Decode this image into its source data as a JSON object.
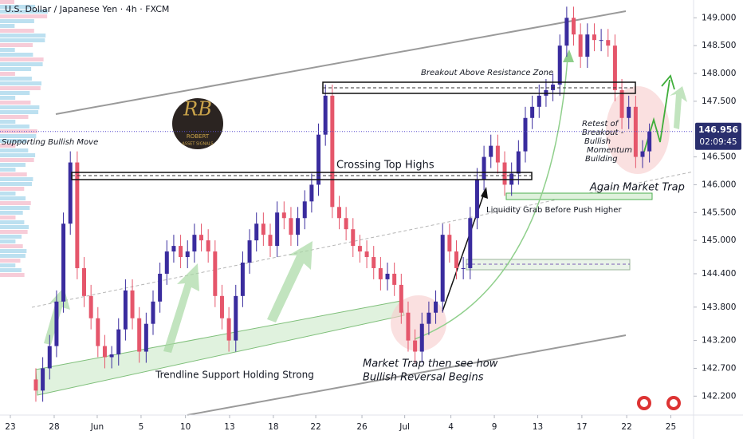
{
  "chart_data": {
    "type": "candlestick",
    "title": "U.S. Dollar / Japanese Yen · 4h · FXCM",
    "open": [
      142.5,
      142.3,
      142.7,
      143.1,
      143.9,
      145.3,
      146.4,
      144.5,
      144.0,
      143.6,
      143.1,
      142.9,
      142.95,
      143.4,
      144.1,
      143.6,
      143.0,
      143.5,
      143.9,
      144.4,
      144.8,
      144.9,
      144.7,
      144.8,
      145.1,
      145.0,
      144.8,
      144.0,
      143.6,
      143.2,
      144.0,
      144.6,
      145.0,
      145.3,
      145.1,
      144.9,
      145.5,
      145.4,
      145.1,
      145.4,
      145.7,
      146.0,
      146.9,
      147.6,
      145.6,
      145.4,
      145.2,
      144.9,
      144.8,
      144.7,
      144.5,
      144.3,
      144.4,
      144.2,
      143.7,
      143.2,
      143.0,
      143.5,
      143.7,
      143.9,
      145.1,
      144.8,
      144.5,
      144.5,
      145.4,
      146.1,
      146.5,
      146.7,
      146.4,
      146.0,
      146.2,
      146.6,
      147.2,
      147.4,
      147.6,
      147.7,
      147.8,
      148.5,
      149.0,
      148.7,
      148.3,
      148.7,
      148.6,
      148.6,
      148.5,
      147.7,
      147.2,
      147.4,
      146.5,
      146.6
    ],
    "high": [
      142.7,
      142.9,
      143.3,
      144.1,
      145.5,
      146.6,
      146.6,
      144.7,
      144.2,
      143.8,
      143.3,
      143.1,
      143.6,
      144.3,
      144.3,
      143.8,
      143.7,
      144.1,
      144.6,
      145.0,
      145.1,
      145.1,
      145.0,
      145.3,
      145.3,
      145.2,
      145.0,
      144.2,
      143.8,
      144.2,
      144.8,
      145.2,
      145.5,
      145.5,
      145.3,
      145.7,
      145.7,
      145.6,
      145.6,
      145.9,
      146.2,
      147.1,
      147.8,
      147.8,
      145.8,
      145.6,
      145.4,
      145.1,
      145.0,
      144.9,
      144.7,
      144.6,
      144.6,
      144.4,
      143.9,
      143.4,
      143.7,
      143.9,
      144.1,
      145.3,
      145.3,
      145.0,
      144.7,
      145.6,
      146.3,
      146.7,
      146.9,
      146.9,
      146.6,
      146.4,
      146.8,
      147.4,
      147.6,
      147.8,
      147.9,
      148.0,
      148.7,
      149.2,
      149.2,
      148.9,
      148.9,
      148.9,
      148.8,
      148.8,
      148.7,
      147.9,
      147.6,
      147.6,
      146.8,
      147.1
    ],
    "low": [
      142.1,
      142.1,
      142.5,
      142.9,
      143.7,
      145.1,
      144.3,
      143.8,
      143.4,
      142.9,
      142.7,
      142.7,
      142.75,
      143.2,
      143.4,
      142.8,
      142.8,
      143.3,
      143.7,
      144.2,
      144.6,
      144.5,
      144.5,
      144.6,
      144.8,
      144.6,
      143.8,
      143.4,
      143.0,
      143.0,
      143.8,
      144.4,
      144.8,
      144.9,
      144.7,
      144.7,
      145.2,
      144.9,
      144.9,
      145.2,
      145.5,
      145.8,
      146.7,
      145.4,
      145.2,
      145.0,
      144.7,
      144.6,
      144.5,
      144.3,
      144.1,
      144.1,
      144.0,
      143.5,
      143.0,
      142.8,
      142.8,
      143.3,
      143.5,
      143.7,
      144.6,
      144.3,
      144.3,
      144.3,
      145.2,
      145.9,
      146.3,
      146.2,
      145.8,
      145.8,
      146.0,
      146.4,
      147.0,
      147.2,
      147.4,
      147.5,
      147.6,
      148.3,
      148.5,
      148.1,
      148.1,
      148.4,
      148.4,
      148.3,
      147.5,
      147.0,
      147.0,
      146.3,
      146.3,
      146.4
    ],
    "close": [
      142.3,
      142.7,
      143.1,
      143.9,
      145.3,
      146.4,
      144.5,
      144.0,
      143.6,
      143.1,
      142.9,
      142.95,
      143.4,
      144.1,
      143.6,
      143.0,
      143.5,
      143.9,
      144.4,
      144.8,
      144.9,
      144.7,
      144.8,
      145.1,
      145.0,
      144.8,
      144.0,
      143.6,
      143.2,
      144.0,
      144.6,
      145.0,
      145.3,
      145.1,
      144.9,
      145.5,
      145.4,
      145.1,
      145.4,
      145.7,
      146.0,
      146.9,
      147.6,
      145.6,
      145.4,
      145.2,
      144.9,
      144.8,
      144.7,
      144.5,
      144.3,
      144.4,
      144.2,
      143.7,
      143.2,
      143.0,
      143.5,
      143.7,
      143.9,
      145.1,
      144.8,
      144.5,
      144.5,
      145.4,
      146.1,
      146.5,
      146.7,
      146.4,
      146.0,
      146.2,
      146.6,
      147.2,
      147.4,
      147.6,
      147.7,
      147.8,
      148.5,
      149.0,
      148.7,
      148.3,
      148.7,
      148.6,
      148.6,
      148.5,
      147.7,
      147.2,
      147.4,
      146.5,
      146.6,
      146.956
    ],
    "up_color": "#3a2c9e",
    "down_color": "#e5566b",
    "ylim": [
      141.86,
      149.32
    ],
    "yticks": [
      {
        "value": 149,
        "label": "149.000"
      },
      {
        "value": 148.5,
        "label": "148.500"
      },
      {
        "value": 148,
        "label": "148.000"
      },
      {
        "value": 147.5,
        "label": "147.500"
      },
      {
        "value": 146.5,
        "label": "146.500"
      },
      {
        "value": 146,
        "label": "146.000"
      },
      {
        "value": 145.5,
        "label": "145.500"
      },
      {
        "value": 145,
        "label": "145.000"
      },
      {
        "value": 144.4,
        "label": "144.400"
      },
      {
        "value": 143.8,
        "label": "143.800"
      },
      {
        "value": 143.2,
        "label": "143.200"
      },
      {
        "value": 142.7,
        "label": "142.700"
      },
      {
        "value": 142.2,
        "label": "142.200"
      }
    ],
    "xlim": [
      -5.2,
      95.4
    ],
    "xticks": [
      {
        "value": -3.7,
        "label": "23"
      },
      {
        "value": 2.66,
        "label": "28"
      },
      {
        "value": 8.9,
        "label": "Jun"
      },
      {
        "value": 15.26,
        "label": "5"
      },
      {
        "value": 21.7,
        "label": "10"
      },
      {
        "value": 28.1,
        "label": "13"
      },
      {
        "value": 34.45,
        "label": "18"
      },
      {
        "value": 40.6,
        "label": "22"
      },
      {
        "value": 47.3,
        "label": "26"
      },
      {
        "value": 53.5,
        "label": "Jul"
      },
      {
        "value": 60.2,
        "label": "4"
      },
      {
        "value": 66.5,
        "label": "9"
      },
      {
        "value": 72.8,
        "label": "13"
      },
      {
        "value": 79.2,
        "label": "17"
      },
      {
        "value": 85.7,
        "label": "22"
      },
      {
        "value": 92.1,
        "label": "25"
      }
    ],
    "grid": false,
    "countdown": "02:09:45",
    "annotations": {
      "breakout": "Breakout Above Resistance Zone",
      "crossing": "Crossing Top Highs",
      "liquidity": "Liquidity Grab Before Push Higher",
      "again_trap": "Again Market Trap",
      "retest": [
        "Retest of",
        "Breakout -",
        "Bullish",
        "Momentum",
        "Building"
      ],
      "market_trap": [
        "Market Trap then see how",
        "Bullish Reversal Begins"
      ],
      "trendline": "Trendline Support Holding Strong",
      "supporting": "Supporting Bullish Move",
      "logo": [
        "RB",
        "ROBERT",
        "ASSET SIGNALS"
      ]
    }
  }
}
